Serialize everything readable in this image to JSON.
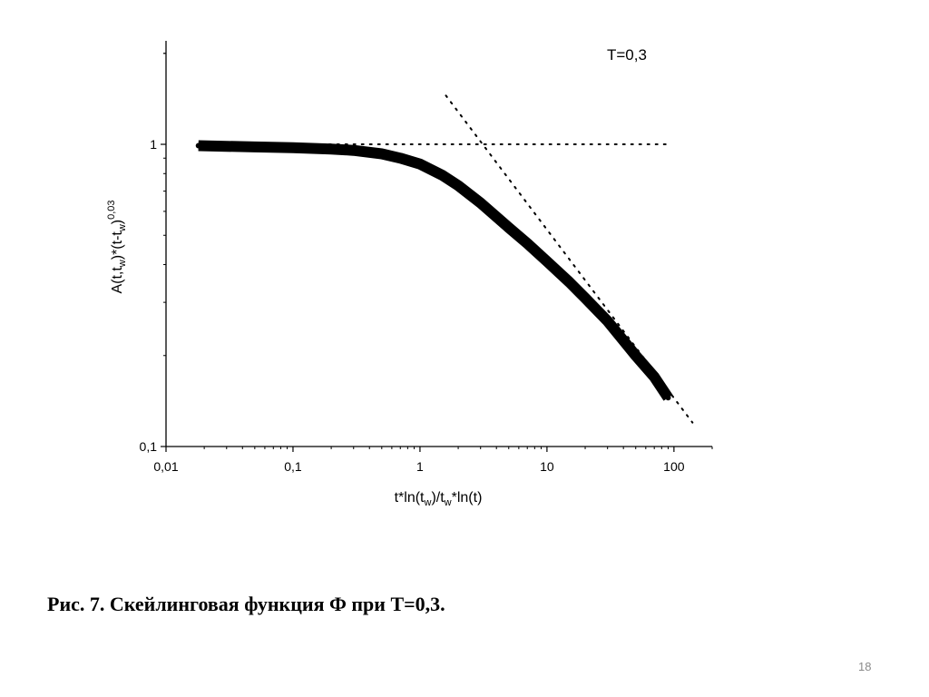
{
  "caption": "Рис. 7. Скейлинговая функция Ф при T=0,3.",
  "slide_number": "18",
  "chart_data": {
    "type": "scatter",
    "annotation": "T=0,3",
    "xlabel": {
      "main": "t*ln(t",
      "sub1": "w",
      "mid": ")/t",
      "sub2": "w",
      "tail": "*ln(t)"
    },
    "ylabel": {
      "p1": "A(t,t",
      "s1": "w",
      "p2": ")*(t-t",
      "s2": "w",
      "p3": ")",
      "sup": "0,03"
    },
    "xscale": "log",
    "yscale": "log",
    "xlim": [
      0.01,
      200
    ],
    "ylim": [
      0.1,
      2.2
    ],
    "x_ticks": [
      {
        "value": 0.01,
        "label": "0,01"
      },
      {
        "value": 0.1,
        "label": "0,1"
      },
      {
        "value": 1,
        "label": "1"
      },
      {
        "value": 10,
        "label": "10"
      },
      {
        "value": 100,
        "label": "100"
      }
    ],
    "y_ticks": [
      {
        "value": 0.1,
        "label": "0,1"
      },
      {
        "value": 1,
        "label": "1"
      }
    ],
    "series": [
      {
        "style": "thick",
        "x": [
          0.018,
          0.03,
          0.05,
          0.1,
          0.2,
          0.3,
          0.5,
          0.7,
          1,
          1.5,
          2,
          3,
          5,
          7,
          10,
          15,
          20,
          30,
          50,
          70,
          90
        ],
        "y": [
          0.99,
          0.985,
          0.98,
          0.975,
          0.965,
          0.955,
          0.93,
          0.9,
          0.86,
          0.79,
          0.73,
          0.64,
          0.53,
          0.47,
          0.41,
          0.35,
          0.31,
          0.26,
          0.2,
          0.17,
          0.145
        ]
      }
    ],
    "reference_lines": [
      {
        "style": "dotted",
        "x": [
          0.018,
          90
        ],
        "y": [
          1,
          1
        ]
      },
      {
        "style": "dotted",
        "x": [
          1.6,
          140
        ],
        "y": [
          1.45,
          0.12
        ]
      }
    ],
    "grid": false,
    "legend": "none"
  }
}
